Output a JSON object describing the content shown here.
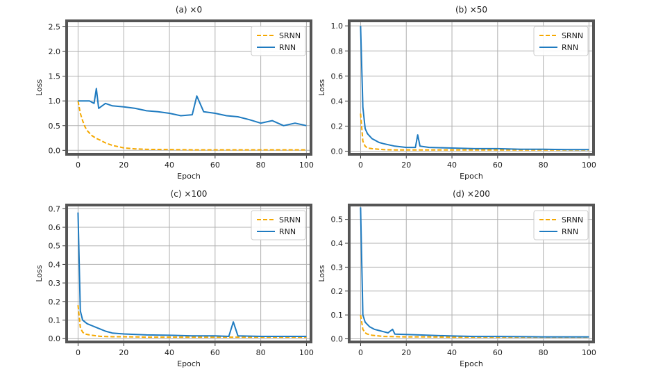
{
  "chart_data": [
    {
      "type": "line",
      "title": "(a) ×0",
      "xlabel": "Epoch",
      "ylabel": "Loss",
      "xlim": [
        -5,
        102
      ],
      "ylim": [
        -0.08,
        2.62
      ],
      "xticks": [
        0,
        20,
        40,
        60,
        80,
        100
      ],
      "yticks": [
        0.0,
        0.5,
        1.0,
        1.5,
        2.0,
        2.5
      ],
      "ytick_labels": [
        "0.0",
        "0.5",
        "1.0",
        "1.5",
        "2.0",
        "2.5"
      ],
      "grid": true,
      "legend": "top-right",
      "series": [
        {
          "name": "SRNN",
          "style": "dashed",
          "color": "#f5a800",
          "x": [
            0,
            1,
            2,
            3,
            4,
            6,
            8,
            10,
            12,
            15,
            18,
            20,
            25,
            30,
            40,
            50,
            60,
            70,
            80,
            90,
            100
          ],
          "y": [
            1.0,
            0.75,
            0.6,
            0.48,
            0.4,
            0.3,
            0.24,
            0.2,
            0.15,
            0.1,
            0.07,
            0.05,
            0.03,
            0.02,
            0.015,
            0.01,
            0.01,
            0.01,
            0.01,
            0.01,
            0.01
          ]
        },
        {
          "name": "RNN",
          "style": "solid",
          "color": "#1f7bc0",
          "x": [
            0,
            5,
            7,
            8,
            9,
            12,
            15,
            20,
            25,
            30,
            35,
            40,
            45,
            50,
            52,
            55,
            60,
            65,
            70,
            75,
            80,
            85,
            90,
            95,
            98,
            100
          ],
          "y": [
            1.0,
            1.0,
            0.95,
            1.25,
            0.85,
            0.95,
            0.9,
            0.88,
            0.85,
            0.8,
            0.78,
            0.75,
            0.7,
            0.72,
            1.1,
            0.78,
            0.75,
            0.7,
            0.68,
            0.62,
            0.55,
            0.6,
            0.5,
            0.55,
            0.52,
            0.5
          ]
        }
      ]
    },
    {
      "type": "line",
      "title": "(b) ×50",
      "xlabel": "Epoch",
      "ylabel": "Loss",
      "xlim": [
        -5,
        102
      ],
      "ylim": [
        -0.025,
        1.04
      ],
      "xticks": [
        0,
        20,
        40,
        60,
        80,
        100
      ],
      "yticks": [
        0.0,
        0.2,
        0.4,
        0.6,
        0.8,
        1.0
      ],
      "ytick_labels": [
        "0.0",
        "0.2",
        "0.4",
        "0.6",
        "0.8",
        "1.0"
      ],
      "grid": true,
      "legend": "top-right",
      "series": [
        {
          "name": "SRNN",
          "style": "dashed",
          "color": "#f5a800",
          "x": [
            0,
            1,
            2,
            3,
            5,
            8,
            10,
            15,
            20,
            30,
            40,
            60,
            80,
            100
          ],
          "y": [
            0.3,
            0.08,
            0.04,
            0.025,
            0.02,
            0.015,
            0.012,
            0.01,
            0.01,
            0.01,
            0.01,
            0.01,
            0.01,
            0.01
          ]
        },
        {
          "name": "RNN",
          "style": "solid",
          "color": "#1f7bc0",
          "x": [
            0,
            1,
            2,
            3,
            4,
            5,
            6,
            8,
            10,
            15,
            20,
            24,
            25,
            26,
            30,
            40,
            50,
            60,
            70,
            80,
            90,
            100
          ],
          "y": [
            1.0,
            0.35,
            0.18,
            0.14,
            0.12,
            0.1,
            0.09,
            0.07,
            0.06,
            0.04,
            0.03,
            0.03,
            0.13,
            0.04,
            0.03,
            0.025,
            0.02,
            0.02,
            0.015,
            0.015,
            0.012,
            0.012
          ]
        }
      ]
    },
    {
      "type": "line",
      "title": "(c) ×100",
      "xlabel": "Epoch",
      "ylabel": "Loss",
      "xlim": [
        -5,
        102
      ],
      "ylim": [
        -0.018,
        0.72
      ],
      "xticks": [
        0,
        20,
        40,
        60,
        80,
        100
      ],
      "yticks": [
        0.0,
        0.1,
        0.2,
        0.3,
        0.4,
        0.5,
        0.6,
        0.7
      ],
      "ytick_labels": [
        "0.0",
        "0.1",
        "0.2",
        "0.3",
        "0.4",
        "0.5",
        "0.6",
        "0.7"
      ],
      "grid": true,
      "legend": "top-right",
      "series": [
        {
          "name": "SRNN",
          "style": "dashed",
          "color": "#f5a800",
          "x": [
            0,
            1,
            2,
            3,
            5,
            8,
            10,
            15,
            20,
            30,
            40,
            60,
            80,
            100
          ],
          "y": [
            0.18,
            0.06,
            0.035,
            0.025,
            0.02,
            0.015,
            0.012,
            0.01,
            0.01,
            0.008,
            0.008,
            0.008,
            0.008,
            0.008
          ]
        },
        {
          "name": "RNN",
          "style": "solid",
          "color": "#1f7bc0",
          "x": [
            0,
            1,
            2,
            3,
            4,
            6,
            8,
            10,
            12,
            15,
            20,
            30,
            40,
            50,
            60,
            66,
            68,
            70,
            80,
            90,
            100
          ],
          "y": [
            0.68,
            0.15,
            0.1,
            0.09,
            0.08,
            0.07,
            0.06,
            0.05,
            0.04,
            0.03,
            0.025,
            0.02,
            0.018,
            0.015,
            0.015,
            0.012,
            0.09,
            0.015,
            0.012,
            0.012,
            0.012
          ]
        }
      ]
    },
    {
      "type": "line",
      "title": "(d) ×200",
      "xlabel": "Epoch",
      "ylabel": "Loss",
      "xlim": [
        -5,
        102
      ],
      "ylim": [
        -0.013,
        0.56
      ],
      "xticks": [
        0,
        20,
        40,
        60,
        80,
        100
      ],
      "yticks": [
        0.0,
        0.1,
        0.2,
        0.3,
        0.4,
        0.5
      ],
      "ytick_labels": [
        "0.0",
        "0.1",
        "0.2",
        "0.3",
        "0.4",
        "0.5"
      ],
      "grid": true,
      "legend": "top-right",
      "series": [
        {
          "name": "SRNN",
          "style": "dashed",
          "color": "#f5a800",
          "x": [
            0,
            1,
            2,
            3,
            5,
            8,
            10,
            15,
            20,
            30,
            40,
            60,
            80,
            100
          ],
          "y": [
            0.1,
            0.04,
            0.025,
            0.02,
            0.015,
            0.012,
            0.01,
            0.009,
            0.008,
            0.008,
            0.007,
            0.007,
            0.007,
            0.007
          ]
        },
        {
          "name": "RNN",
          "style": "solid",
          "color": "#1f7bc0",
          "x": [
            0,
            1,
            2,
            3,
            4,
            6,
            8,
            10,
            12,
            14,
            15,
            20,
            30,
            40,
            50,
            60,
            70,
            80,
            90,
            100
          ],
          "y": [
            0.55,
            0.1,
            0.07,
            0.06,
            0.05,
            0.04,
            0.035,
            0.03,
            0.025,
            0.04,
            0.02,
            0.018,
            0.015,
            0.012,
            0.01,
            0.01,
            0.009,
            0.008,
            0.008,
            0.008
          ]
        }
      ]
    }
  ]
}
